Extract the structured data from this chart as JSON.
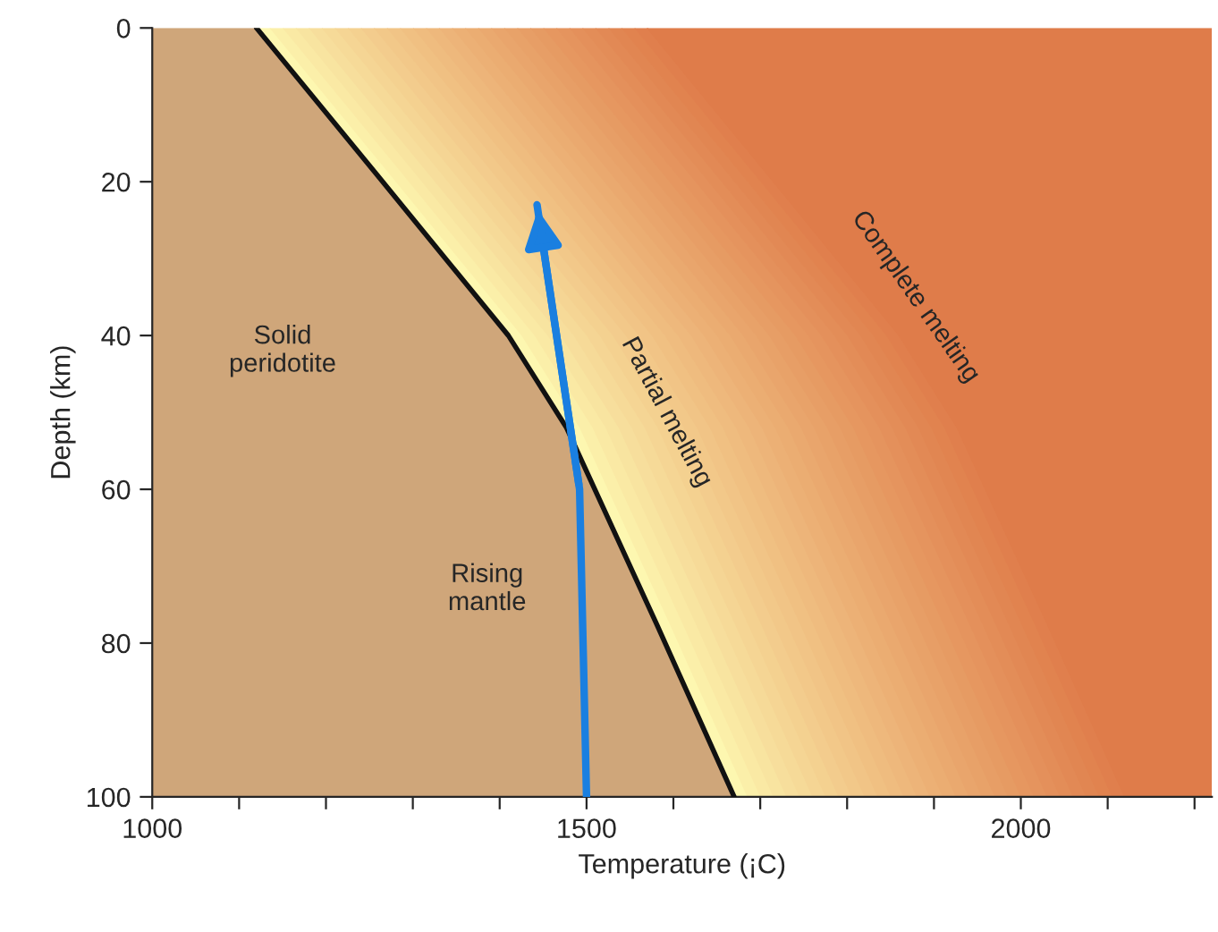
{
  "chart_data": {
    "type": "line",
    "xlabel": "Temperature (¡C)",
    "ylabel": "Depth (km)",
    "xlim": [
      1000,
      2220
    ],
    "ylim": [
      100,
      0
    ],
    "xticks": [
      1000,
      {
        "value": 1100,
        "label": null
      },
      {
        "value": 1200,
        "label": null
      },
      {
        "value": 1300,
        "label": null
      },
      {
        "value": 1400,
        "label": null
      },
      1500,
      {
        "value": 1600,
        "label": null
      },
      {
        "value": 1700,
        "label": null
      },
      {
        "value": 1800,
        "label": null
      },
      {
        "value": 1900,
        "label": null
      },
      2000,
      {
        "value": 2100,
        "label": null
      },
      {
        "value": 2200,
        "label": null
      }
    ],
    "yticks": [
      0,
      20,
      40,
      60,
      80,
      100
    ],
    "grid": false,
    "legend": false,
    "series": [
      {
        "color": "#111111",
        "x": [
          1120,
          1258,
          1410,
          1477,
          1581,
          1670
        ],
        "values": [
          0,
          19,
          40,
          52,
          77.6,
          100
        ]
      },
      {
        "color": "#1a7fe0",
        "x": [
          1500,
          1492,
          1443
        ],
        "values": [
          100,
          60,
          23
        ]
      }
    ],
    "annotations": [
      "Solid\nperidotite",
      "Rising\nmantle",
      "Partial melting",
      "Complete melting"
    ]
  }
}
